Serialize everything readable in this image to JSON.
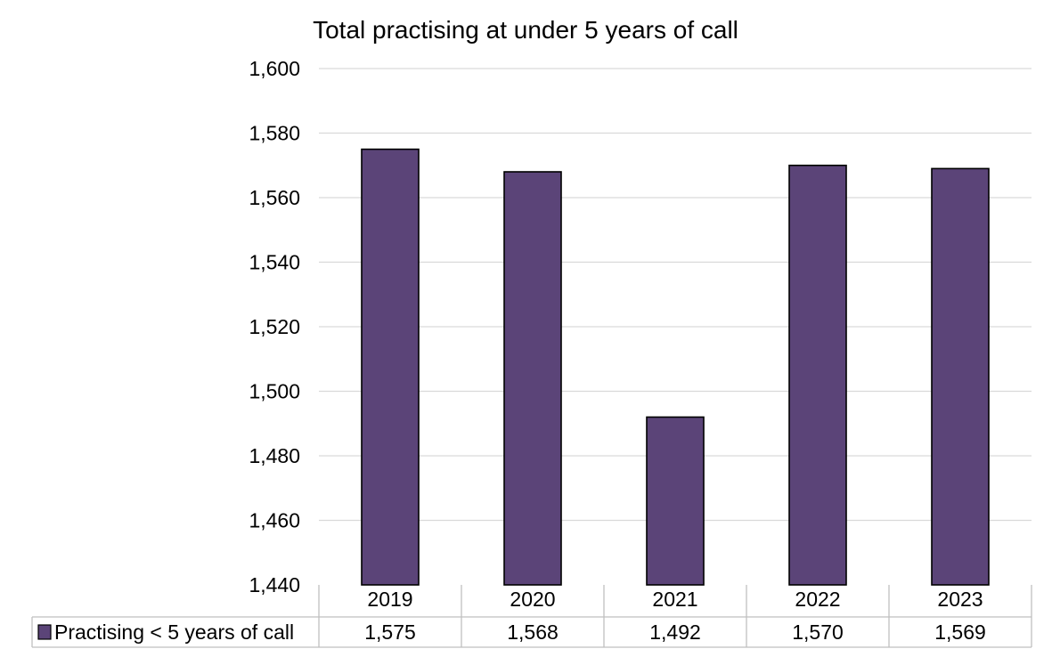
{
  "chart_data": {
    "type": "bar",
    "title": "Total practising at under 5 years of call",
    "xlabel": "",
    "ylabel": "",
    "categories": [
      "2019",
      "2020",
      "2021",
      "2022",
      "2023"
    ],
    "series": [
      {
        "name": "Practising < 5 years of call",
        "values": [
          1575,
          1568,
          1492,
          1570,
          1569
        ],
        "value_labels": [
          "1,575",
          "1,568",
          "1,492",
          "1,570",
          "1,569"
        ]
      }
    ],
    "ylim": [
      1440,
      1600
    ],
    "yticks": [
      1440,
      1460,
      1480,
      1500,
      1520,
      1540,
      1560,
      1580,
      1600
    ],
    "ytick_labels": [
      "1,440",
      "1,460",
      "1,480",
      "1,500",
      "1,520",
      "1,540",
      "1,560",
      "1,580",
      "1,600"
    ],
    "grid": true,
    "legend": "data-table",
    "colors": {
      "bar": "#5b4478",
      "bar_outline": "#000000",
      "grid": "#d9d9d9",
      "table_border": "#bfbfbf"
    }
  }
}
